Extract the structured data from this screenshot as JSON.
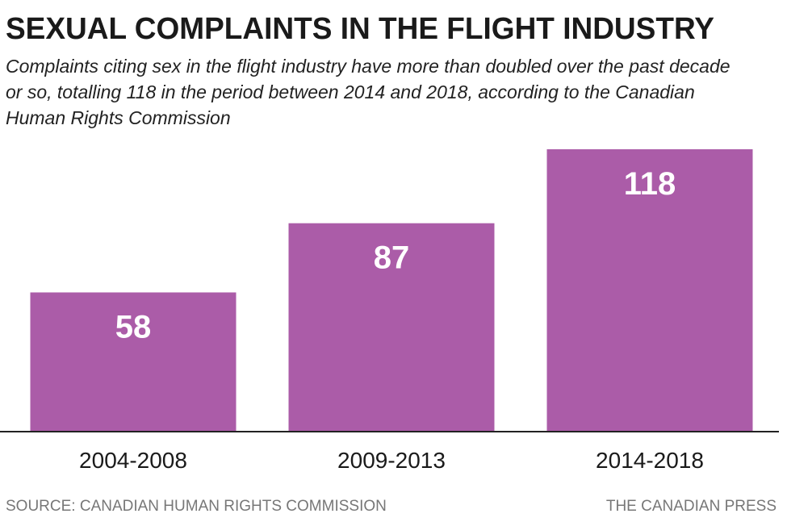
{
  "chart_data": {
    "type": "bar",
    "title": "SEXUAL COMPLAINTS IN THE FLIGHT INDUSTRY",
    "subtitle": "Complaints citing sex in the flight industry have more than doubled over the past decade or so, totalling 118 in the period between 2014 and 2018, according to the Canadian Human Rights Commission",
    "categories": [
      "2004-2008",
      "2009-2013",
      "2014-2018"
    ],
    "values": [
      58,
      87,
      118
    ],
    "color": "#ab5ca8",
    "source": "SOURCE: CANADIAN HUMAN RIGHTS COMMISSION",
    "credit": "THE CANADIAN PRESS"
  }
}
